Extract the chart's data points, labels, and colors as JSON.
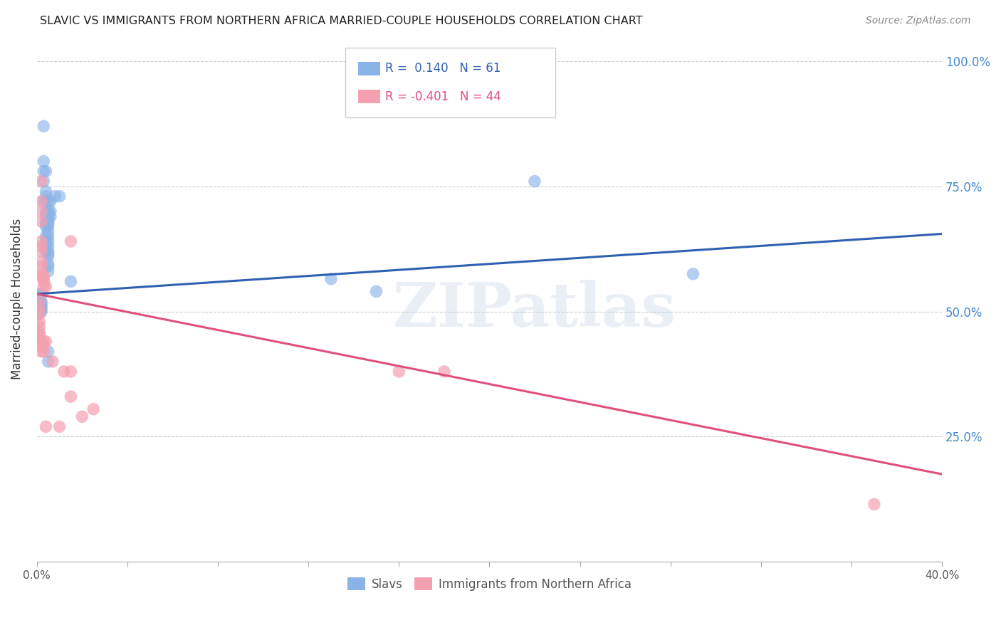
{
  "title": "SLAVIC VS IMMIGRANTS FROM NORTHERN AFRICA MARRIED-COUPLE HOUSEHOLDS CORRELATION CHART",
  "source": "Source: ZipAtlas.com",
  "ylabel": "Married-couple Households",
  "ytick_labels": [
    "100.0%",
    "75.0%",
    "50.0%",
    "25.0%"
  ],
  "ytick_values": [
    1.0,
    0.75,
    0.5,
    0.25
  ],
  "xmin": 0.0,
  "xmax": 0.4,
  "ymin": 0.0,
  "ymax": 1.05,
  "blue_R": 0.14,
  "blue_N": 61,
  "pink_R": -0.401,
  "pink_N": 44,
  "legend_label_blue": "Slavs",
  "legend_label_pink": "Immigrants from Northern Africa",
  "blue_color": "#8ab4e8",
  "pink_color": "#f4a0b0",
  "blue_line_color": "#3060b0",
  "pink_line_color": "#e0507a",
  "watermark": "ZIPatlas",
  "blue_points": [
    [
      0.001,
      0.535
    ],
    [
      0.001,
      0.52
    ],
    [
      0.001,
      0.51
    ],
    [
      0.001,
      0.505
    ],
    [
      0.001,
      0.5
    ],
    [
      0.001,
      0.495
    ],
    [
      0.002,
      0.535
    ],
    [
      0.002,
      0.52
    ],
    [
      0.002,
      0.515
    ],
    [
      0.002,
      0.51
    ],
    [
      0.002,
      0.505
    ],
    [
      0.002,
      0.5
    ],
    [
      0.003,
      0.87
    ],
    [
      0.003,
      0.8
    ],
    [
      0.003,
      0.78
    ],
    [
      0.003,
      0.76
    ],
    [
      0.003,
      0.72
    ],
    [
      0.004,
      0.78
    ],
    [
      0.004,
      0.74
    ],
    [
      0.004,
      0.73
    ],
    [
      0.004,
      0.72
    ],
    [
      0.004,
      0.7
    ],
    [
      0.004,
      0.695
    ],
    [
      0.004,
      0.69
    ],
    [
      0.004,
      0.68
    ],
    [
      0.004,
      0.675
    ],
    [
      0.004,
      0.67
    ],
    [
      0.004,
      0.65
    ],
    [
      0.004,
      0.64
    ],
    [
      0.004,
      0.63
    ],
    [
      0.004,
      0.62
    ],
    [
      0.005,
      0.72
    ],
    [
      0.005,
      0.7
    ],
    [
      0.005,
      0.695
    ],
    [
      0.005,
      0.69
    ],
    [
      0.005,
      0.685
    ],
    [
      0.005,
      0.68
    ],
    [
      0.005,
      0.675
    ],
    [
      0.005,
      0.67
    ],
    [
      0.005,
      0.66
    ],
    [
      0.005,
      0.65
    ],
    [
      0.005,
      0.64
    ],
    [
      0.005,
      0.63
    ],
    [
      0.005,
      0.62
    ],
    [
      0.005,
      0.615
    ],
    [
      0.005,
      0.61
    ],
    [
      0.005,
      0.595
    ],
    [
      0.005,
      0.59
    ],
    [
      0.005,
      0.58
    ],
    [
      0.005,
      0.42
    ],
    [
      0.005,
      0.4
    ],
    [
      0.006,
      0.72
    ],
    [
      0.006,
      0.7
    ],
    [
      0.006,
      0.69
    ],
    [
      0.008,
      0.73
    ],
    [
      0.01,
      0.73
    ],
    [
      0.015,
      0.56
    ],
    [
      0.13,
      0.565
    ],
    [
      0.15,
      0.54
    ],
    [
      0.22,
      0.76
    ],
    [
      0.29,
      0.575
    ]
  ],
  "pink_points": [
    [
      0.001,
      0.52
    ],
    [
      0.001,
      0.505
    ],
    [
      0.001,
      0.495
    ],
    [
      0.001,
      0.48
    ],
    [
      0.001,
      0.47
    ],
    [
      0.001,
      0.46
    ],
    [
      0.001,
      0.455
    ],
    [
      0.001,
      0.45
    ],
    [
      0.001,
      0.44
    ],
    [
      0.002,
      0.76
    ],
    [
      0.002,
      0.72
    ],
    [
      0.002,
      0.7
    ],
    [
      0.002,
      0.68
    ],
    [
      0.002,
      0.64
    ],
    [
      0.002,
      0.63
    ],
    [
      0.002,
      0.62
    ],
    [
      0.002,
      0.6
    ],
    [
      0.002,
      0.59
    ],
    [
      0.002,
      0.575
    ],
    [
      0.002,
      0.57
    ],
    [
      0.002,
      0.44
    ],
    [
      0.002,
      0.43
    ],
    [
      0.002,
      0.42
    ],
    [
      0.003,
      0.57
    ],
    [
      0.003,
      0.565
    ],
    [
      0.003,
      0.56
    ],
    [
      0.003,
      0.55
    ],
    [
      0.003,
      0.44
    ],
    [
      0.003,
      0.43
    ],
    [
      0.003,
      0.42
    ],
    [
      0.004,
      0.55
    ],
    [
      0.004,
      0.44
    ],
    [
      0.004,
      0.27
    ],
    [
      0.007,
      0.4
    ],
    [
      0.01,
      0.27
    ],
    [
      0.012,
      0.38
    ],
    [
      0.015,
      0.64
    ],
    [
      0.015,
      0.38
    ],
    [
      0.015,
      0.33
    ],
    [
      0.02,
      0.29
    ],
    [
      0.025,
      0.305
    ],
    [
      0.16,
      0.38
    ],
    [
      0.18,
      0.38
    ],
    [
      0.37,
      0.115
    ]
  ],
  "blue_trendline": [
    [
      0.0,
      0.535
    ],
    [
      0.4,
      0.655
    ]
  ],
  "pink_trendline": [
    [
      0.0,
      0.535
    ],
    [
      0.4,
      0.175
    ]
  ]
}
